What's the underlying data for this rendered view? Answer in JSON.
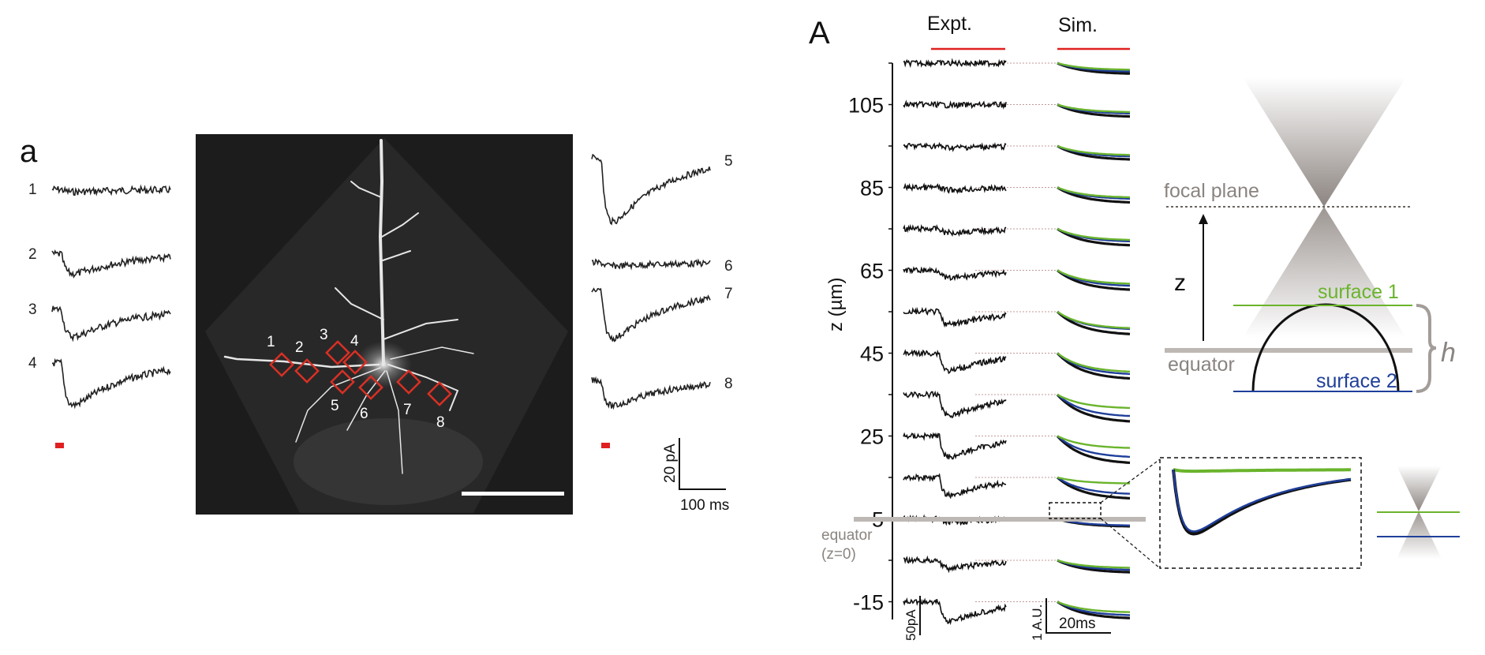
{
  "panel_a": {
    "label": "a",
    "left_traces": [
      {
        "id": "1",
        "amp": 0.05
      },
      {
        "id": "2",
        "amp": 0.4
      },
      {
        "id": "3",
        "amp": 0.55
      },
      {
        "id": "4",
        "amp": 0.85
      }
    ],
    "right_traces": [
      {
        "id": "5",
        "amp": 1.0
      },
      {
        "id": "6",
        "amp": 0.05
      },
      {
        "id": "7",
        "amp": 0.75
      },
      {
        "id": "8",
        "amp": 0.4
      }
    ],
    "roi_labels": [
      "1",
      "2",
      "3",
      "4",
      "5",
      "6",
      "7",
      "8"
    ],
    "scale": {
      "y_label": "20 pA",
      "x_label": "100 ms"
    }
  },
  "panel_A": {
    "label": "A",
    "col_expt": "Expt.",
    "col_sim": "Sim.",
    "y_axis_label": "z (µm)",
    "y_ticks": [
      "105",
      "85",
      "65",
      "45",
      "25",
      "5",
      "-15"
    ],
    "depths": [
      {
        "z": 115,
        "expt": 0.0,
        "sim": [
          0.35,
          0.28,
          0.22
        ]
      },
      {
        "z": 105,
        "expt": 0.02,
        "sim": [
          0.4,
          0.3,
          0.25
        ]
      },
      {
        "z": 95,
        "expt": 0.05,
        "sim": [
          0.45,
          0.35,
          0.3
        ]
      },
      {
        "z": 85,
        "expt": 0.08,
        "sim": [
          0.5,
          0.38,
          0.33
        ]
      },
      {
        "z": 75,
        "expt": 0.12,
        "sim": [
          0.55,
          0.42,
          0.37
        ]
      },
      {
        "z": 65,
        "expt": 0.25,
        "sim": [
          0.65,
          0.52,
          0.45
        ]
      },
      {
        "z": 55,
        "expt": 0.4,
        "sim": [
          0.75,
          0.58,
          0.55
        ]
      },
      {
        "z": 45,
        "expt": 0.55,
        "sim": [
          0.85,
          0.7,
          0.62
        ]
      },
      {
        "z": 35,
        "expt": 0.65,
        "sim": [
          0.9,
          0.72,
          0.45
        ]
      },
      {
        "z": 25,
        "expt": 0.65,
        "sim": [
          0.9,
          0.7,
          0.4
        ]
      },
      {
        "z": 15,
        "expt": 0.55,
        "sim": [
          0.7,
          0.55,
          0.2
        ]
      },
      {
        "z": 5,
        "expt": 0.1,
        "sim": [
          0.25,
          0.22,
          0.02
        ]
      },
      {
        "z": -5,
        "expt": 0.25,
        "sim": [
          0.4,
          0.32,
          0.25
        ]
      },
      {
        "z": -15,
        "expt": 0.6,
        "sim": [
          0.55,
          0.45,
          0.35
        ]
      }
    ],
    "equator_label": "equator",
    "equator_sub": "(z=0)",
    "scale_expt": "50pA",
    "scale_sim_y": "1 A.U.",
    "scale_sim_x": "20ms",
    "diagram": {
      "focal_plane": "focal plane",
      "z_label": "z",
      "surface1": "surface 1",
      "surface2": "surface 2",
      "equator": "equator",
      "h_label": "h"
    },
    "colors": {
      "stim": "#e02020",
      "green": "#6ab42c",
      "blue": "#1f3f9a",
      "equator_gray": "#bdb8b4",
      "label_gray": "#8a8480"
    }
  }
}
